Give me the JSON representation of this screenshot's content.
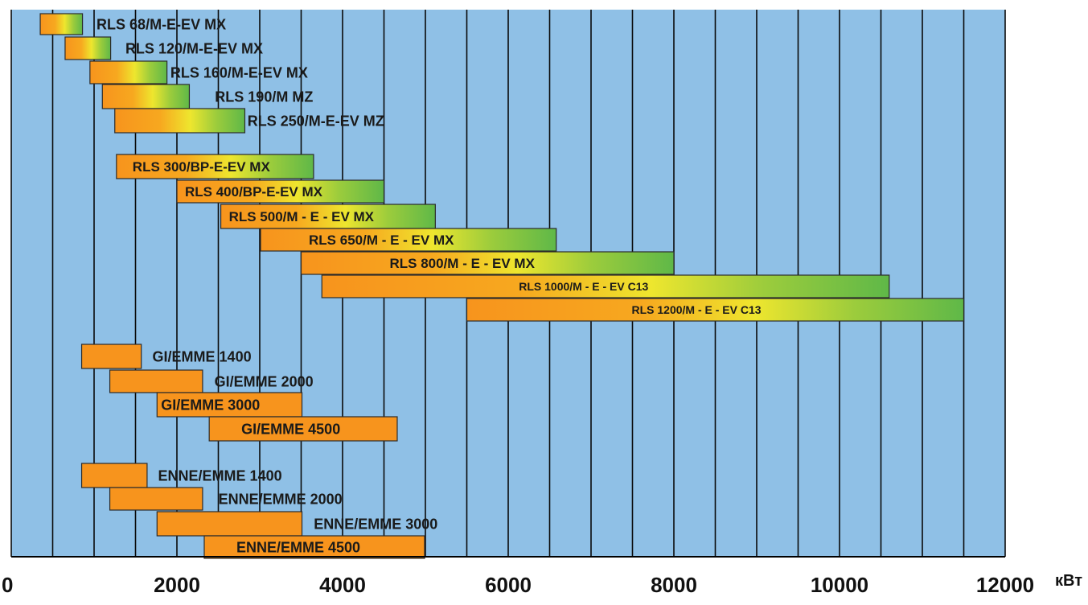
{
  "chart_data": {
    "type": "bar",
    "orientation": "horizontal-range",
    "title": "",
    "xlabel": "кВт",
    "ylabel": "",
    "xlim": [
      0,
      12000
    ],
    "xticks": [
      0,
      2000,
      4000,
      6000,
      8000,
      10000,
      12000
    ],
    "grid": true,
    "legend": "none",
    "colors": {
      "background": "#8fc0e6",
      "gridline": "#0a0a0a",
      "bar_orange": "#f7941d",
      "bar_yellow": "#f2e62c",
      "bar_green": "#6cbd45",
      "bar_border": "#2b2b2b"
    },
    "bars": [
      {
        "label": "RLS 68/M-E-EV MX",
        "start": 350,
        "end": 860,
        "gradient": true
      },
      {
        "label": "RLS 120/M-E-EV MX",
        "start": 650,
        "end": 1200,
        "gradient": true
      },
      {
        "label": "RLS 160/M-E-EV MX",
        "start": 950,
        "end": 1880,
        "gradient": true
      },
      {
        "label": "RLS 190/M MZ",
        "start": 1100,
        "end": 2150,
        "gradient": true
      },
      {
        "label": "RLS 250/M-E-EV MZ",
        "start": 1250,
        "end": 2820,
        "gradient": true
      },
      {
        "label": "RLS 300/BP-E-EV MX",
        "start": 1270,
        "end": 3650,
        "gradient": true
      },
      {
        "label": "RLS 400/BP-E-EV  MX",
        "start": 2000,
        "end": 4500,
        "gradient": true
      },
      {
        "label": "RLS 500/M - E - EV MX",
        "start": 2530,
        "end": 5120,
        "gradient": true
      },
      {
        "label": "RLS 650/M - E - EV MX",
        "start": 3010,
        "end": 6580,
        "gradient": true
      },
      {
        "label": "RLS 800/M - E - EV MX",
        "start": 3500,
        "end": 8000,
        "gradient": true
      },
      {
        "label": "RLS 1000/M - E - EV C13",
        "start": 3750,
        "end": 10600,
        "gradient": true
      },
      {
        "label": "RLS 1200/M - E - EV C13",
        "start": 5500,
        "end": 11500,
        "gradient": true
      },
      {
        "label": "GI/EMME 1400",
        "start": 850,
        "end": 1570,
        "gradient": false
      },
      {
        "label": "GI/EMME 2000",
        "start": 1190,
        "end": 2310,
        "gradient": false
      },
      {
        "label": "GI/EMME 3000",
        "start": 1760,
        "end": 3510,
        "gradient": false
      },
      {
        "label": "GI/EMME 4500",
        "start": 2390,
        "end": 4660,
        "gradient": false
      },
      {
        "label": "ENNE/EMME 1400",
        "start": 850,
        "end": 1640,
        "gradient": false
      },
      {
        "label": "ENNE/EMME 2000",
        "start": 1190,
        "end": 2310,
        "gradient": false
      },
      {
        "label": "ENNE/EMME 3000",
        "start": 1760,
        "end": 3510,
        "gradient": false
      },
      {
        "label": "ENNE/EMME 4500",
        "start": 2330,
        "end": 4990,
        "gradient": false
      }
    ]
  }
}
